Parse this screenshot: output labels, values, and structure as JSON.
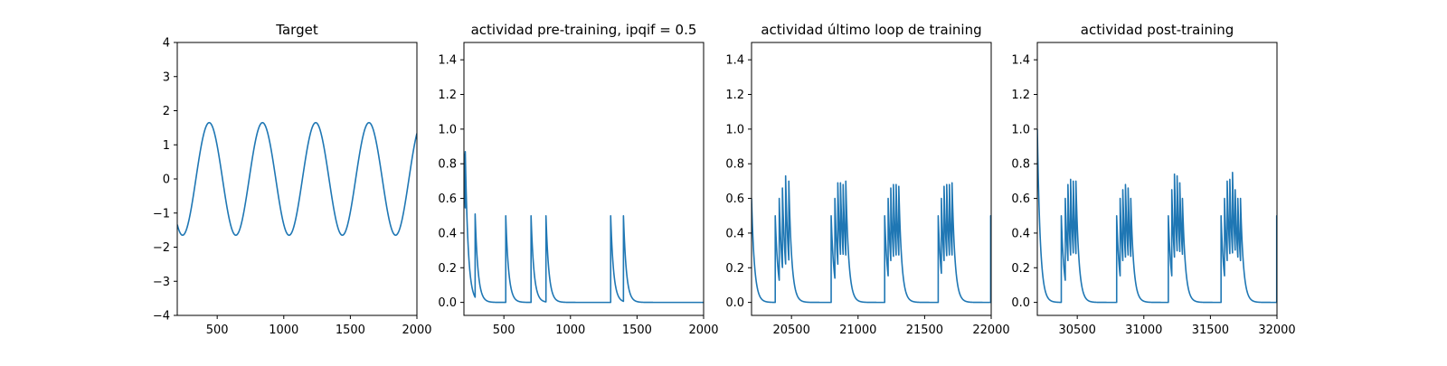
{
  "figure": {
    "line_color": "#1f77b4"
  },
  "chart_data": [
    {
      "type": "line",
      "title": "Target",
      "xlabel": "",
      "ylabel": "",
      "xlim": [
        200,
        2000
      ],
      "ylim": [
        -4,
        4
      ],
      "xticks": [
        500,
        1000,
        1500,
        2000
      ],
      "xtick_labels": [
        "500",
        "1000",
        "1500",
        "2000"
      ],
      "yticks": [
        -4,
        -3,
        -2,
        -1,
        0,
        1,
        2,
        3,
        4
      ],
      "ytick_labels": [
        "−4",
        "−3",
        "−2",
        "−1",
        "0",
        "1",
        "2",
        "3",
        "4"
      ],
      "grid": false,
      "series": [
        {
          "kind": "sine",
          "amplitude": 1.65,
          "period": 400,
          "peaks_at": [
            440,
            840,
            1240,
            1640
          ],
          "troughs_at": [
            240,
            640,
            1040,
            1440,
            1840
          ],
          "end_point": [
            2000,
            1.25
          ]
        }
      ]
    },
    {
      "type": "line",
      "title": "actividad pre-training, ipqif = 0.5",
      "xlabel": "",
      "ylabel": "",
      "xlim": [
        200,
        2000
      ],
      "ylim": [
        -0.075,
        1.5
      ],
      "xticks": [
        500,
        1000,
        1500,
        2000
      ],
      "xtick_labels": [
        "500",
        "1000",
        "1500",
        "2000"
      ],
      "yticks": [
        0,
        0.2,
        0.4,
        0.6,
        0.8,
        1.0,
        1.2,
        1.4
      ],
      "ytick_labels": [
        "0.0",
        "0.2",
        "0.4",
        "0.6",
        "0.8",
        "1.0",
        "1.2",
        "1.4"
      ],
      "grid": false,
      "series": [
        {
          "kind": "spike_train",
          "decay": 22,
          "baseline": 0,
          "initial_level": 0.86,
          "spikes": [
            {
              "t": 210,
              "peak": 0.87
            },
            {
              "t": 284,
              "peak": 0.51
            },
            {
              "t": 514,
              "peak": 0.5
            },
            {
              "t": 704,
              "peak": 0.5
            },
            {
              "t": 816,
              "peak": 0.5
            },
            {
              "t": 1302,
              "peak": 0.5
            },
            {
              "t": 1398,
              "peak": 0.5
            }
          ]
        }
      ]
    },
    {
      "type": "line",
      "title": "actividad último loop de training",
      "xlabel": "",
      "ylabel": "",
      "xlim": [
        20200,
        22000
      ],
      "ylim": [
        -0.075,
        1.5
      ],
      "xticks": [
        20500,
        21000,
        21500,
        22000
      ],
      "xtick_labels": [
        "20500",
        "21000",
        "21500",
        "22000"
      ],
      "yticks": [
        0,
        0.2,
        0.4,
        0.6,
        0.8,
        1.0,
        1.2,
        1.4
      ],
      "ytick_labels": [
        "0.0",
        "0.2",
        "0.4",
        "0.6",
        "0.8",
        "1.0",
        "1.2",
        "1.4"
      ],
      "grid": false,
      "series": [
        {
          "kind": "spike_train",
          "decay": 22,
          "baseline": 0,
          "initial_level": 0.6,
          "end_level": 0.2,
          "spikes": [
            {
              "t": 20378,
              "peak": 0.5
            },
            {
              "t": 20408,
              "peak": 0.6
            },
            {
              "t": 20432,
              "peak": 0.66
            },
            {
              "t": 20456,
              "peak": 0.73
            },
            {
              "t": 20480,
              "peak": 0.7
            },
            {
              "t": 20798,
              "peak": 0.5
            },
            {
              "t": 20826,
              "peak": 0.6
            },
            {
              "t": 20848,
              "peak": 0.69
            },
            {
              "t": 20868,
              "peak": 0.69
            },
            {
              "t": 20888,
              "peak": 0.68
            },
            {
              "t": 20908,
              "peak": 0.7
            },
            {
              "t": 21200,
              "peak": 0.5
            },
            {
              "t": 21226,
              "peak": 0.6
            },
            {
              "t": 21246,
              "peak": 0.66
            },
            {
              "t": 21266,
              "peak": 0.68
            },
            {
              "t": 21286,
              "peak": 0.68
            },
            {
              "t": 21306,
              "peak": 0.67
            },
            {
              "t": 21602,
              "peak": 0.5
            },
            {
              "t": 21626,
              "peak": 0.6
            },
            {
              "t": 21646,
              "peak": 0.67
            },
            {
              "t": 21666,
              "peak": 0.68
            },
            {
              "t": 21686,
              "peak": 0.68
            },
            {
              "t": 21706,
              "peak": 0.69
            },
            {
              "t": 21996,
              "peak": 0.5
            }
          ]
        }
      ]
    },
    {
      "type": "line",
      "title": "actividad post-training",
      "xlabel": "",
      "ylabel": "",
      "xlim": [
        30200,
        32000
      ],
      "ylim": [
        -0.075,
        1.5
      ],
      "xticks": [
        30500,
        31000,
        31500,
        32000
      ],
      "xtick_labels": [
        "30500",
        "31000",
        "31500",
        "32000"
      ],
      "yticks": [
        0,
        0.2,
        0.4,
        0.6,
        0.8,
        1.0,
        1.2,
        1.4
      ],
      "ytick_labels": [
        "0.0",
        "0.2",
        "0.4",
        "0.6",
        "0.8",
        "1.0",
        "1.2",
        "1.4"
      ],
      "grid": false,
      "series": [
        {
          "kind": "spike_train",
          "decay": 22,
          "baseline": 0,
          "initial_level": 1.0,
          "spikes": [
            {
              "t": 30380,
              "peak": 0.5
            },
            {
              "t": 30410,
              "peak": 0.6
            },
            {
              "t": 30430,
              "peak": 0.68
            },
            {
              "t": 30450,
              "peak": 0.71
            },
            {
              "t": 30470,
              "peak": 0.7
            },
            {
              "t": 30490,
              "peak": 0.7
            },
            {
              "t": 30796,
              "peak": 0.5
            },
            {
              "t": 30822,
              "peak": 0.6
            },
            {
              "t": 30842,
              "peak": 0.65
            },
            {
              "t": 30862,
              "peak": 0.68
            },
            {
              "t": 30882,
              "peak": 0.66
            },
            {
              "t": 30902,
              "peak": 0.6
            },
            {
              "t": 31184,
              "peak": 0.5
            },
            {
              "t": 31210,
              "peak": 0.65
            },
            {
              "t": 31230,
              "peak": 0.74
            },
            {
              "t": 31250,
              "peak": 0.73
            },
            {
              "t": 31270,
              "peak": 0.69
            },
            {
              "t": 31290,
              "peak": 0.6
            },
            {
              "t": 31580,
              "peak": 0.5
            },
            {
              "t": 31606,
              "peak": 0.6
            },
            {
              "t": 31626,
              "peak": 0.7
            },
            {
              "t": 31646,
              "peak": 0.71
            },
            {
              "t": 31666,
              "peak": 0.75
            },
            {
              "t": 31686,
              "peak": 0.65
            },
            {
              "t": 31706,
              "peak": 0.6
            },
            {
              "t": 31726,
              "peak": 0.6
            },
            {
              "t": 31998,
              "peak": 0.5
            }
          ]
        }
      ]
    }
  ]
}
